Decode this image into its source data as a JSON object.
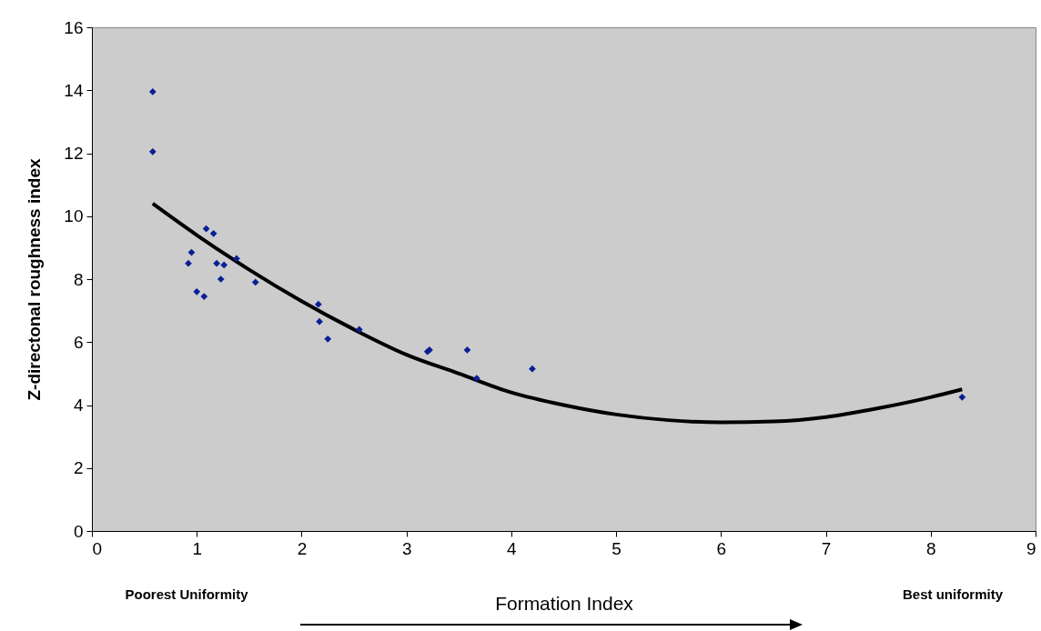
{
  "chart_data": {
    "type": "scatter",
    "xlabel": "Formation Index",
    "ylabel": "Z-directonal roughness index",
    "xlim": [
      0,
      9
    ],
    "xticks": [
      0,
      1,
      2,
      3,
      4,
      5,
      6,
      7,
      8,
      9
    ],
    "ylim": [
      0,
      16
    ],
    "yticks": [
      0,
      2,
      4,
      6,
      8,
      10,
      12,
      14,
      16
    ],
    "grid": false,
    "marker": "diamond",
    "annotations": [
      "Poorest Uniformity",
      "Best uniformity"
    ],
    "series": [
      {
        "color": "#0a1f94",
        "x": [
          0.58,
          0.58,
          0.92,
          0.95,
          1.0,
          1.07,
          1.09,
          1.16,
          1.19,
          1.23,
          1.26,
          1.38,
          1.56,
          2.16,
          2.17,
          2.25,
          2.55,
          3.2,
          3.22,
          3.58,
          3.67,
          4.2,
          8.3
        ],
        "values": [
          13.95,
          12.05,
          8.5,
          8.85,
          7.6,
          7.45,
          9.6,
          9.45,
          8.5,
          8.0,
          8.45,
          8.65,
          7.9,
          7.2,
          6.65,
          6.1,
          6.4,
          5.7,
          5.75,
          5.75,
          4.85,
          5.15,
          4.25
        ]
      },
      {
        "type": "line",
        "color": "#000000",
        "marker": "none",
        "x": [
          0.58,
          1,
          1.5,
          2,
          2.5,
          3,
          3.5,
          4,
          4.5,
          5,
          5.5,
          6,
          6.5,
          7,
          7.5,
          8,
          8.3
        ],
        "values": [
          10.4,
          9.4,
          8.3,
          7.3,
          6.4,
          5.6,
          5.0,
          4.4,
          4.0,
          3.7,
          3.52,
          3.45,
          3.48,
          3.62,
          3.9,
          4.25,
          4.5
        ]
      }
    ]
  }
}
